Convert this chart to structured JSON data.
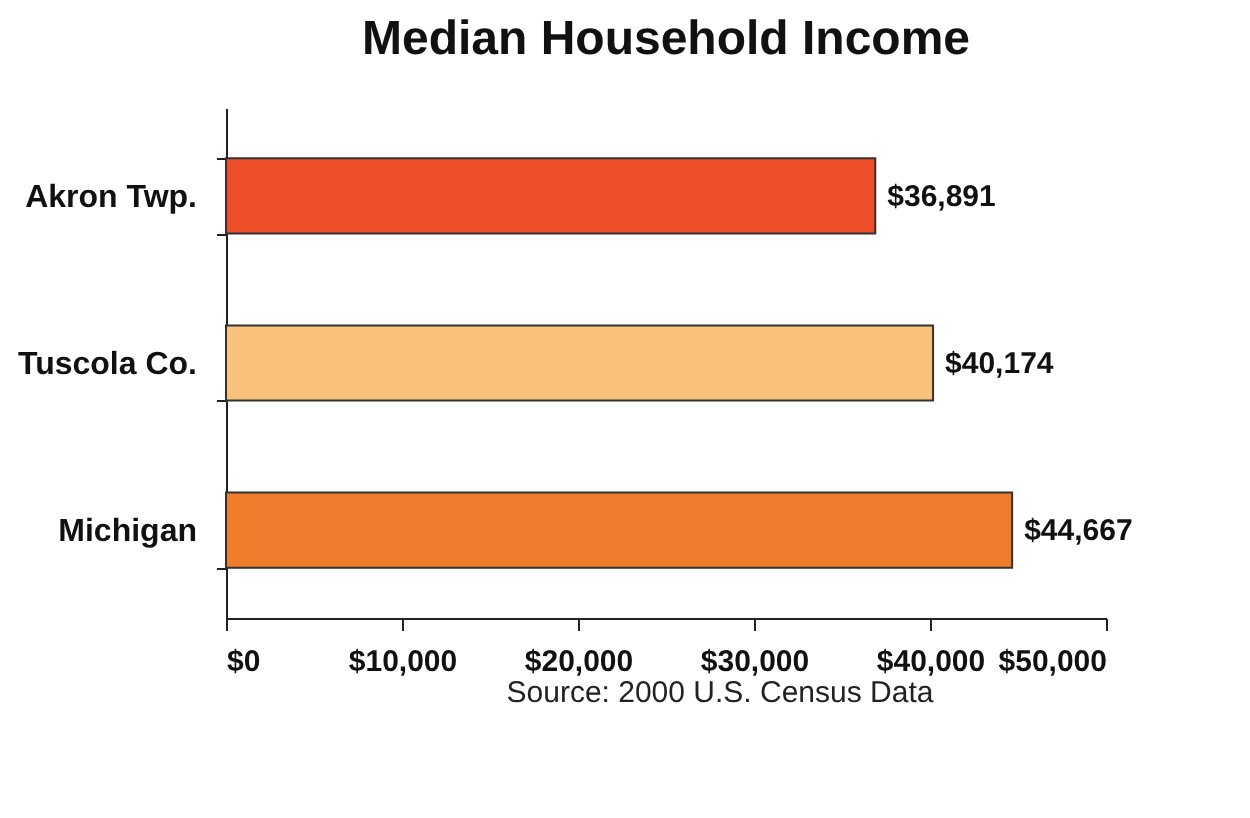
{
  "chart_data": {
    "type": "bar",
    "orientation": "horizontal",
    "title": "Median Household Income",
    "categories": [
      "Akron Twp.",
      "Tuscola Co.",
      "Michigan"
    ],
    "values": [
      36891,
      40174,
      44667
    ],
    "colors": [
      "#ee4e2a",
      "#f9c27c",
      "#f07d2c"
    ],
    "value_labels": [
      "$36,891",
      "$40,174",
      "$44,667"
    ],
    "xlim": [
      0,
      50000
    ],
    "xticks": [
      {
        "value": 0,
        "label": "$0"
      },
      {
        "value": 10000,
        "label": "$10,000"
      },
      {
        "value": 20000,
        "label": "$20,000"
      },
      {
        "value": 30000,
        "label": "$30,000"
      },
      {
        "value": 40000,
        "label": "$40,000"
      },
      {
        "value": 50000,
        "label": "$50,000"
      }
    ],
    "annotations": [
      "Source: 2000 U.S. Census Data"
    ]
  }
}
